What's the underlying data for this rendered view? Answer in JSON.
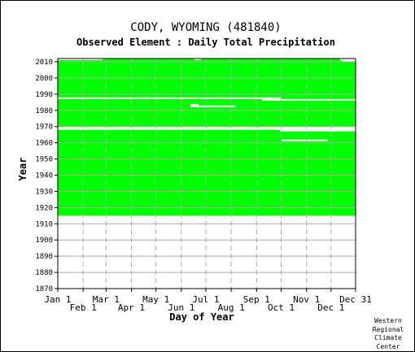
{
  "chart_data": {
    "type": "heatmap",
    "title": "CODY, WYOMING   (481840)",
    "subtitle": "Observed Element : Daily Total Precipitation",
    "xlabel": "Day of Year",
    "ylabel": "Year",
    "xlim": [
      1,
      365
    ],
    "ylim": [
      1870,
      2012
    ],
    "x_ticks_top_row": [
      "Jan 1",
      "Mar 1",
      "May 1",
      "Jul 1",
      "Sep 1",
      "Nov 1",
      "Dec 31"
    ],
    "x_ticks_bottom_row": [
      "Feb 1",
      "Apr 1",
      "Jun 1",
      "Aug 1",
      "Oct 1",
      "Dec 1"
    ],
    "y_ticks": [
      "1870",
      "1880",
      "1890",
      "1900",
      "1910",
      "1920",
      "1930",
      "1940",
      "1950",
      "1960",
      "1970",
      "1980",
      "1990",
      "2000",
      "2010"
    ],
    "grid": true,
    "data_color": "#00ff00",
    "missing_color": "#ffffff",
    "observed_range_years": [
      1915,
      2011
    ],
    "missing_records": [
      {
        "year": 2011,
        "start_day": 1,
        "end_day": 55
      },
      {
        "year": 2011,
        "start_day": 168,
        "end_day": 175
      },
      {
        "year": 2011,
        "start_day": 346,
        "end_day": 365
      },
      {
        "year": 2010,
        "start_day": 348,
        "end_day": 365
      },
      {
        "year": 1987,
        "start_day": 1,
        "end_day": 273
      },
      {
        "year": 1986,
        "start_day": 251,
        "end_day": 365
      },
      {
        "year": 1983,
        "start_day": 163,
        "end_day": 172
      },
      {
        "year": 1982,
        "start_day": 163,
        "end_day": 217
      },
      {
        "year": 1969,
        "start_day": 1,
        "end_day": 365
      },
      {
        "year": 1968,
        "start_day": 1,
        "end_day": 365
      },
      {
        "year": 1968,
        "start_day": 263,
        "end_day": 365
      },
      {
        "year": 1967,
        "start_day": 273,
        "end_day": 365
      },
      {
        "year": 1961,
        "start_day": 275,
        "end_day": 330
      }
    ]
  },
  "credit": [
    "Western",
    "Regional",
    "Climate",
    "Center"
  ]
}
